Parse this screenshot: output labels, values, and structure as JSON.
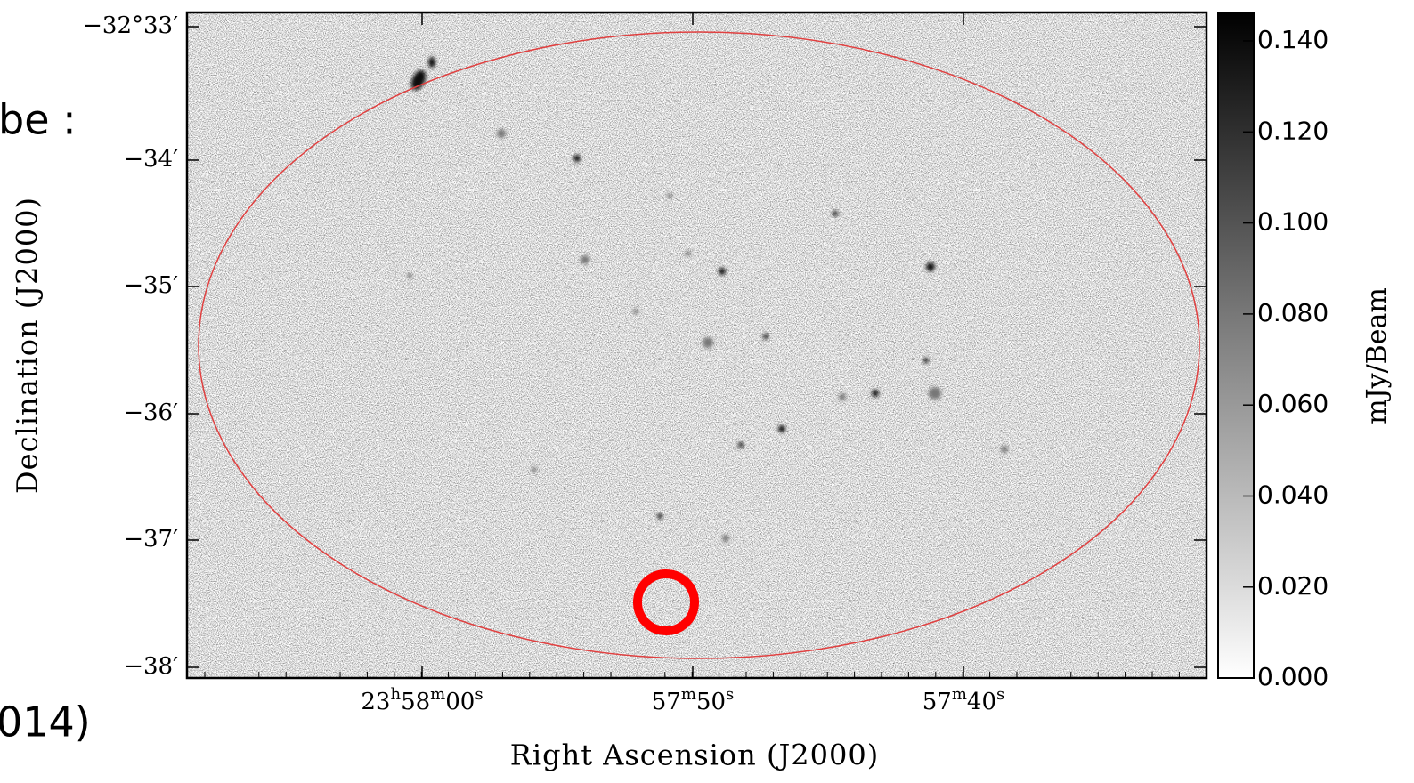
{
  "slide_fragments": {
    "left_text": "be :",
    "bottom_left_text": "014)"
  },
  "image": {
    "x_axis_label": "Right Ascension (J2000)",
    "y_axis_label": "Declination (J2000)",
    "x_ticks": [
      [
        "23",
        "h",
        "58",
        "m",
        "00",
        "s"
      ],
      [
        "57",
        "m",
        "50",
        "s"
      ],
      [
        "57",
        "m",
        "40",
        "s"
      ]
    ],
    "y_ticks": [
      "−32°33′",
      "−34′",
      "−35′",
      "−36′",
      "−37′",
      "−38′"
    ],
    "colorbar": {
      "label": "mJy/Beam",
      "ticks": [
        "0.140",
        "0.120",
        "0.100",
        "0.080",
        "0.060",
        "0.040",
        "0.020",
        "0.000"
      ]
    }
  }
}
